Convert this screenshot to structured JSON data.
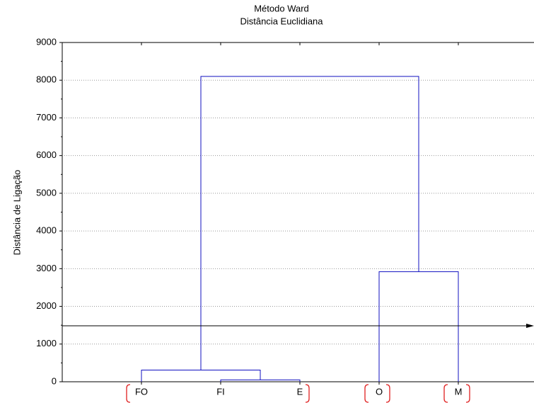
{
  "chart_data": {
    "type": "dendrogram",
    "title": "Método Ward",
    "subtitle": "Distância Euclidiana",
    "y_label": "Distância de Ligação",
    "categories": [
      "FO",
      "FI",
      "E",
      "O",
      "M"
    ],
    "merges": [
      {
        "height": 50
      },
      {
        "height": 310
      },
      {
        "height": 2920
      },
      {
        "height": 8100
      }
    ],
    "cut_height": 1485,
    "color": "#1010c0",
    "ylim": [
      0,
      9000
    ],
    "yticks": [
      0,
      1000,
      2000,
      3000,
      4000,
      5000,
      6000,
      7000,
      8000,
      9000
    ],
    "grid": true
  }
}
